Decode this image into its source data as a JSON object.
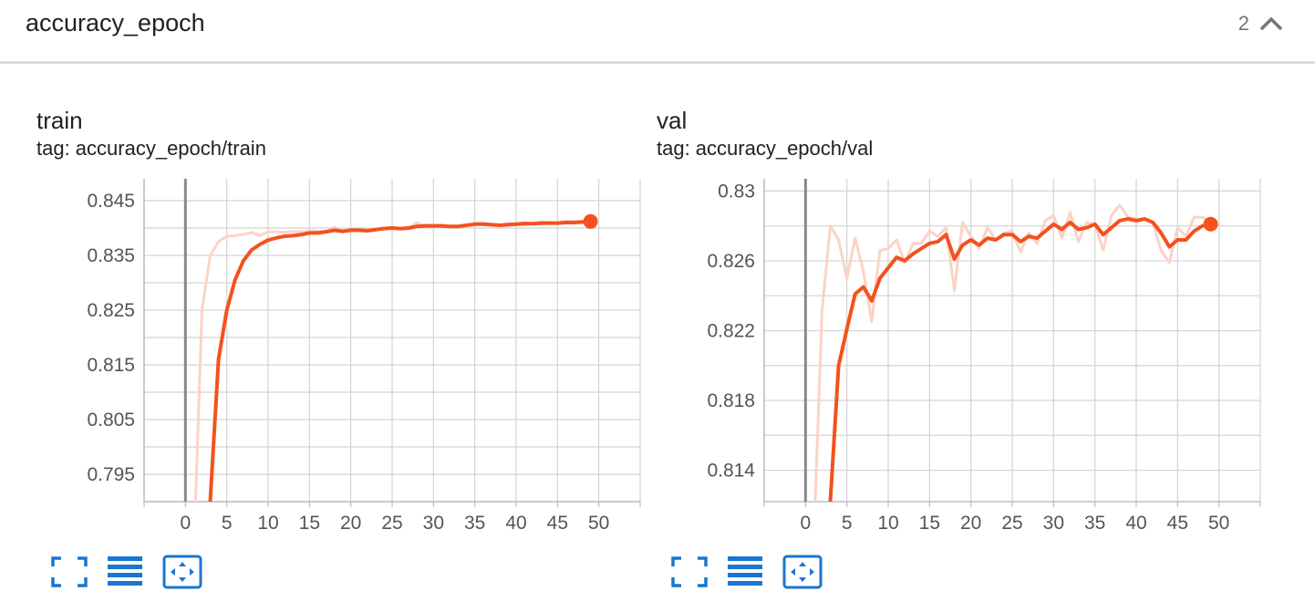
{
  "header": {
    "title": "accuracy_epoch",
    "count": "2"
  },
  "colors": {
    "accent": "#f4511e",
    "smoothed": "#f4511e",
    "raw": "#fbd3c7",
    "grid": "#d3d3d3",
    "icon": "#1976d2"
  },
  "toolbar_icons": [
    "fullscreen-icon",
    "data-table-icon",
    "fit-domain-icon"
  ],
  "cards": [
    {
      "title": "train",
      "tag": "tag: accuracy_epoch/train"
    },
    {
      "title": "val",
      "tag": "tag: accuracy_epoch/val"
    }
  ],
  "chart_data": [
    {
      "type": "line",
      "title": "train",
      "xlim": [
        -5,
        55
      ],
      "ylim": [
        0.79,
        0.849
      ],
      "xticks": [
        "0",
        "5",
        "10",
        "15",
        "20",
        "25",
        "30",
        "35",
        "40",
        "45",
        "50"
      ],
      "yticks": [
        "0.845",
        "0.835",
        "0.825",
        "0.815",
        "0.805",
        "0.795"
      ],
      "grid": true,
      "series": [
        {
          "role": "raw",
          "x": [
            1,
            2,
            3,
            4,
            5,
            6,
            7,
            8,
            9,
            10,
            11,
            12,
            13,
            14,
            15,
            16,
            17,
            18,
            19,
            20,
            21,
            22,
            23,
            24,
            25,
            26,
            27,
            28,
            29,
            30,
            31,
            32,
            33,
            34,
            35,
            36,
            37,
            38,
            39,
            40,
            41,
            42,
            43,
            44,
            45,
            46,
            47,
            48,
            49
          ],
          "y": [
            0.78,
            0.825,
            0.835,
            0.8375,
            0.8385,
            0.8386,
            0.8388,
            0.8392,
            0.8386,
            0.8393,
            0.8393,
            0.8392,
            0.8394,
            0.8393,
            0.8395,
            0.8394,
            0.8394,
            0.8402,
            0.8394,
            0.8398,
            0.8396,
            0.8396,
            0.8399,
            0.8398,
            0.8401,
            0.8399,
            0.8399,
            0.841,
            0.8403,
            0.8405,
            0.8402,
            0.8403,
            0.8401,
            0.8406,
            0.8408,
            0.8409,
            0.8406,
            0.8405,
            0.8408,
            0.8408,
            0.841,
            0.8408,
            0.8411,
            0.841,
            0.841,
            0.8413,
            0.8412,
            0.8412,
            0.8413
          ]
        },
        {
          "role": "smoothed",
          "x": [
            3,
            4,
            5,
            6,
            7,
            8,
            9,
            10,
            11,
            12,
            13,
            14,
            15,
            16,
            17,
            18,
            19,
            20,
            21,
            22,
            23,
            24,
            25,
            26,
            27,
            28,
            29,
            30,
            31,
            32,
            33,
            34,
            35,
            36,
            37,
            38,
            39,
            40,
            41,
            42,
            43,
            44,
            45,
            46,
            47,
            48,
            49
          ],
          "y": [
            0.79,
            0.816,
            0.825,
            0.8305,
            0.834,
            0.836,
            0.837,
            0.8378,
            0.8382,
            0.8385,
            0.8386,
            0.8388,
            0.8391,
            0.8391,
            0.8393,
            0.8396,
            0.8394,
            0.8396,
            0.8396,
            0.8395,
            0.8397,
            0.8399,
            0.84,
            0.8399,
            0.84,
            0.8403,
            0.8404,
            0.8404,
            0.8404,
            0.8403,
            0.8403,
            0.8405,
            0.8407,
            0.8407,
            0.8406,
            0.8405,
            0.8406,
            0.8407,
            0.8408,
            0.8408,
            0.8409,
            0.8409,
            0.8409,
            0.841,
            0.841,
            0.8411,
            0.8412
          ]
        }
      ]
    },
    {
      "type": "line",
      "title": "val",
      "xlim": [
        -5,
        55
      ],
      "ylim": [
        0.8122,
        0.8307
      ],
      "xticks": [
        "0",
        "5",
        "10",
        "15",
        "20",
        "25",
        "30",
        "35",
        "40",
        "45",
        "50"
      ],
      "yticks": [
        "0.83",
        "0.826",
        "0.822",
        "0.818",
        "0.814"
      ],
      "grid": true,
      "series": [
        {
          "role": "raw",
          "x": [
            1,
            2,
            3,
            4,
            5,
            6,
            7,
            8,
            9,
            10,
            11,
            12,
            13,
            14,
            15,
            16,
            17,
            18,
            19,
            20,
            21,
            22,
            23,
            24,
            25,
            26,
            27,
            28,
            29,
            30,
            31,
            32,
            33,
            34,
            35,
            36,
            37,
            38,
            39,
            40,
            41,
            42,
            43,
            44,
            45,
            46,
            47,
            48,
            49
          ],
          "y": [
            0.81,
            0.8232,
            0.828,
            0.8272,
            0.825,
            0.8273,
            0.8254,
            0.8225,
            0.8266,
            0.8267,
            0.8272,
            0.8259,
            0.827,
            0.827,
            0.8277,
            0.8274,
            0.8279,
            0.8243,
            0.8282,
            0.8274,
            0.8267,
            0.8279,
            0.8272,
            0.8276,
            0.8277,
            0.8265,
            0.8276,
            0.827,
            0.8283,
            0.8286,
            0.8273,
            0.8288,
            0.8271,
            0.8282,
            0.8281,
            0.8266,
            0.8286,
            0.8292,
            0.8285,
            0.8284,
            0.8284,
            0.8282,
            0.8266,
            0.8259,
            0.8279,
            0.8274,
            0.8285,
            0.8285,
            0.8282
          ]
        },
        {
          "role": "smoothed",
          "x": [
            3,
            4,
            5,
            6,
            7,
            8,
            9,
            10,
            11,
            12,
            13,
            14,
            15,
            16,
            17,
            18,
            19,
            20,
            21,
            22,
            23,
            24,
            25,
            26,
            27,
            28,
            29,
            30,
            31,
            32,
            33,
            34,
            35,
            36,
            37,
            38,
            39,
            40,
            41,
            42,
            43,
            44,
            45,
            46,
            47,
            48,
            49
          ],
          "y": [
            0.8122,
            0.82,
            0.8221,
            0.8241,
            0.8245,
            0.8237,
            0.825,
            0.8256,
            0.8262,
            0.826,
            0.8264,
            0.8267,
            0.827,
            0.8271,
            0.8275,
            0.8261,
            0.8269,
            0.8272,
            0.8269,
            0.8273,
            0.8272,
            0.8275,
            0.8275,
            0.8271,
            0.8274,
            0.8273,
            0.8277,
            0.8281,
            0.8278,
            0.8282,
            0.8278,
            0.8279,
            0.8281,
            0.8275,
            0.8279,
            0.8283,
            0.8284,
            0.8283,
            0.8284,
            0.8282,
            0.8276,
            0.8268,
            0.8272,
            0.8272,
            0.8277,
            0.828,
            0.8281
          ]
        }
      ]
    }
  ]
}
